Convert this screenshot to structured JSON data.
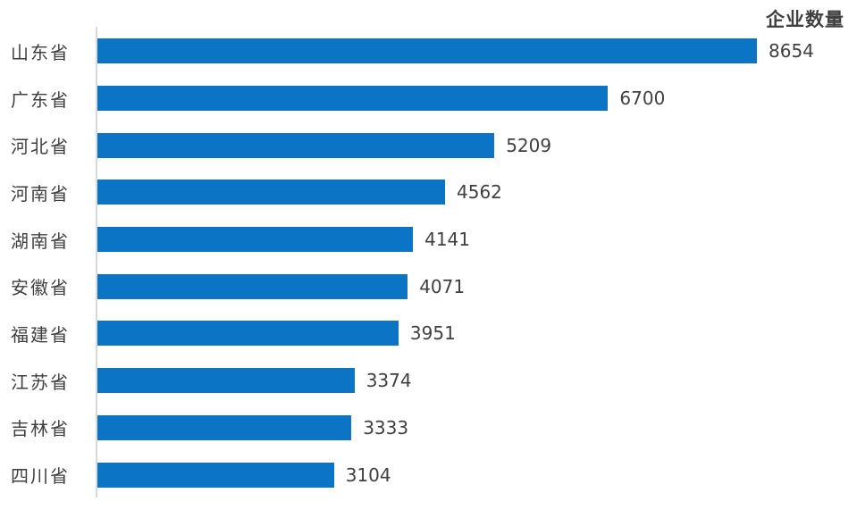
{
  "chart_data": {
    "type": "bar",
    "orientation": "horizontal",
    "title": "企业数量",
    "categories": [
      "山东省",
      "广东省",
      "河北省",
      "河南省",
      "湖南省",
      "安徽省",
      "福建省",
      "江苏省",
      "吉林省",
      "四川省"
    ],
    "values": [
      8654,
      6700,
      5209,
      4562,
      4141,
      4071,
      3951,
      3374,
      3333,
      3104
    ],
    "xlim": [
      0,
      8654
    ],
    "value_labels_shown": true,
    "grid": false,
    "legend": "none",
    "bar_color": "#0b74c4",
    "value_label_color": "#404040",
    "category_label_color": "#3f3f3f",
    "title_color": "#404040",
    "axis_line_color": "#d9d9d9",
    "background_color": "#ffffff"
  }
}
